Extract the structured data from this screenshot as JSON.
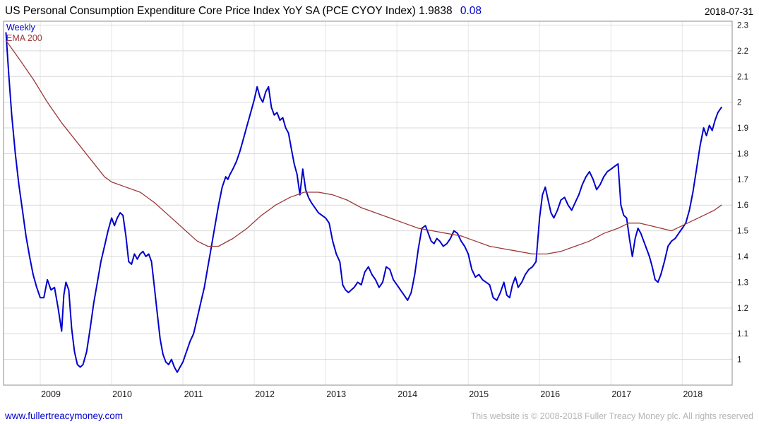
{
  "header": {
    "title": "US Personal Consumption Expenditure Core Price Index YoY SA (PCE CYOY Index) 1.9838",
    "change": "0.08",
    "date": "2018-07-31"
  },
  "legend": {
    "weekly": "Weekly",
    "ema": "EMA 200"
  },
  "footer": {
    "site": "www.fullertreacymoney.com",
    "copyright": "This website is © 2008-2018 Fuller Treacy Money plc. All rights reserved"
  },
  "chart_data": {
    "type": "line",
    "title": "US Personal Consumption Expenditure Core Price Index YoY SA (PCE CYOY Index)",
    "last_value": 1.9838,
    "change": 0.08,
    "frequency": "Weekly",
    "legend_position": "top-left",
    "grid": true,
    "x_axis": {
      "ticks": [
        "2009",
        "2010",
        "2011",
        "2012",
        "2013",
        "2014",
        "2015",
        "2016",
        "2017",
        "2018"
      ],
      "range": [
        2008.485,
        2018.7
      ]
    },
    "y_axis": {
      "ticks": [
        "1",
        "1.1",
        "1.2",
        "1.3",
        "1.4",
        "1.5",
        "1.6",
        "1.7",
        "1.8",
        "1.9",
        "2",
        "2.1",
        "2.2",
        "2.3"
      ],
      "range": [
        0.9,
        2.315
      ],
      "side": "right"
    },
    "style": {
      "hgrid": "#d9d9d9",
      "vgrid": "#e6e6e6",
      "border": "#8c8c8c",
      "axis_text": "#1a1a1a"
    },
    "series": [
      {
        "name": "Weekly",
        "color": "#0000cd",
        "width": 2,
        "points": [
          [
            2008.52,
            2.27
          ],
          [
            2008.56,
            2.1
          ],
          [
            2008.6,
            1.95
          ],
          [
            2008.65,
            1.8
          ],
          [
            2008.7,
            1.68
          ],
          [
            2008.75,
            1.58
          ],
          [
            2008.8,
            1.48
          ],
          [
            2008.85,
            1.4
          ],
          [
            2008.9,
            1.33
          ],
          [
            2008.95,
            1.28
          ],
          [
            2009.0,
            1.24
          ],
          [
            2009.05,
            1.24
          ],
          [
            2009.1,
            1.31
          ],
          [
            2009.15,
            1.27
          ],
          [
            2009.2,
            1.28
          ],
          [
            2009.25,
            1.2
          ],
          [
            2009.3,
            1.11
          ],
          [
            2009.33,
            1.25
          ],
          [
            2009.36,
            1.3
          ],
          [
            2009.4,
            1.27
          ],
          [
            2009.44,
            1.12
          ],
          [
            2009.48,
            1.03
          ],
          [
            2009.52,
            0.98
          ],
          [
            2009.56,
            0.97
          ],
          [
            2009.6,
            0.98
          ],
          [
            2009.65,
            1.03
          ],
          [
            2009.7,
            1.12
          ],
          [
            2009.75,
            1.22
          ],
          [
            2009.8,
            1.3
          ],
          [
            2009.85,
            1.38
          ],
          [
            2009.9,
            1.44
          ],
          [
            2009.95,
            1.5
          ],
          [
            2010.0,
            1.55
          ],
          [
            2010.04,
            1.52
          ],
          [
            2010.08,
            1.55
          ],
          [
            2010.12,
            1.57
          ],
          [
            2010.16,
            1.56
          ],
          [
            2010.2,
            1.48
          ],
          [
            2010.24,
            1.38
          ],
          [
            2010.28,
            1.37
          ],
          [
            2010.32,
            1.41
          ],
          [
            2010.36,
            1.39
          ],
          [
            2010.4,
            1.41
          ],
          [
            2010.44,
            1.42
          ],
          [
            2010.48,
            1.4
          ],
          [
            2010.52,
            1.41
          ],
          [
            2010.56,
            1.38
          ],
          [
            2010.6,
            1.28
          ],
          [
            2010.64,
            1.18
          ],
          [
            2010.68,
            1.08
          ],
          [
            2010.72,
            1.02
          ],
          [
            2010.76,
            0.99
          ],
          [
            2010.8,
            0.98
          ],
          [
            2010.84,
            1.0
          ],
          [
            2010.88,
            0.97
          ],
          [
            2010.92,
            0.95
          ],
          [
            2010.96,
            0.97
          ],
          [
            2011.0,
            0.99
          ],
          [
            2011.05,
            1.03
          ],
          [
            2011.1,
            1.07
          ],
          [
            2011.15,
            1.1
          ],
          [
            2011.2,
            1.16
          ],
          [
            2011.25,
            1.22
          ],
          [
            2011.3,
            1.28
          ],
          [
            2011.35,
            1.36
          ],
          [
            2011.4,
            1.44
          ],
          [
            2011.45,
            1.52
          ],
          [
            2011.5,
            1.6
          ],
          [
            2011.55,
            1.67
          ],
          [
            2011.6,
            1.71
          ],
          [
            2011.63,
            1.7
          ],
          [
            2011.66,
            1.72
          ],
          [
            2011.7,
            1.74
          ],
          [
            2011.75,
            1.77
          ],
          [
            2011.8,
            1.81
          ],
          [
            2011.85,
            1.86
          ],
          [
            2011.9,
            1.91
          ],
          [
            2011.95,
            1.96
          ],
          [
            2012.0,
            2.01
          ],
          [
            2012.04,
            2.06
          ],
          [
            2012.08,
            2.02
          ],
          [
            2012.12,
            2.0
          ],
          [
            2012.16,
            2.04
          ],
          [
            2012.2,
            2.06
          ],
          [
            2012.24,
            1.98
          ],
          [
            2012.28,
            1.95
          ],
          [
            2012.32,
            1.96
          ],
          [
            2012.36,
            1.93
          ],
          [
            2012.4,
            1.94
          ],
          [
            2012.44,
            1.9
          ],
          [
            2012.48,
            1.88
          ],
          [
            2012.52,
            1.82
          ],
          [
            2012.56,
            1.76
          ],
          [
            2012.6,
            1.72
          ],
          [
            2012.64,
            1.64
          ],
          [
            2012.68,
            1.74
          ],
          [
            2012.72,
            1.66
          ],
          [
            2012.76,
            1.63
          ],
          [
            2012.8,
            1.61
          ],
          [
            2012.85,
            1.59
          ],
          [
            2012.9,
            1.57
          ],
          [
            2012.95,
            1.56
          ],
          [
            2013.0,
            1.55
          ],
          [
            2013.05,
            1.53
          ],
          [
            2013.1,
            1.46
          ],
          [
            2013.15,
            1.41
          ],
          [
            2013.2,
            1.38
          ],
          [
            2013.24,
            1.29
          ],
          [
            2013.28,
            1.27
          ],
          [
            2013.32,
            1.26
          ],
          [
            2013.36,
            1.27
          ],
          [
            2013.4,
            1.28
          ],
          [
            2013.45,
            1.3
          ],
          [
            2013.5,
            1.29
          ],
          [
            2013.55,
            1.34
          ],
          [
            2013.6,
            1.36
          ],
          [
            2013.65,
            1.33
          ],
          [
            2013.7,
            1.31
          ],
          [
            2013.75,
            1.28
          ],
          [
            2013.8,
            1.3
          ],
          [
            2013.85,
            1.36
          ],
          [
            2013.9,
            1.35
          ],
          [
            2013.95,
            1.31
          ],
          [
            2014.0,
            1.29
          ],
          [
            2014.05,
            1.27
          ],
          [
            2014.1,
            1.25
          ],
          [
            2014.15,
            1.23
          ],
          [
            2014.2,
            1.26
          ],
          [
            2014.25,
            1.33
          ],
          [
            2014.3,
            1.43
          ],
          [
            2014.35,
            1.51
          ],
          [
            2014.4,
            1.52
          ],
          [
            2014.44,
            1.49
          ],
          [
            2014.48,
            1.46
          ],
          [
            2014.52,
            1.45
          ],
          [
            2014.56,
            1.47
          ],
          [
            2014.6,
            1.46
          ],
          [
            2014.65,
            1.44
          ],
          [
            2014.7,
            1.45
          ],
          [
            2014.75,
            1.47
          ],
          [
            2014.8,
            1.5
          ],
          [
            2014.85,
            1.49
          ],
          [
            2014.9,
            1.46
          ],
          [
            2014.95,
            1.44
          ],
          [
            2015.0,
            1.41
          ],
          [
            2015.05,
            1.35
          ],
          [
            2015.1,
            1.32
          ],
          [
            2015.15,
            1.33
          ],
          [
            2015.2,
            1.31
          ],
          [
            2015.25,
            1.3
          ],
          [
            2015.3,
            1.29
          ],
          [
            2015.35,
            1.24
          ],
          [
            2015.4,
            1.23
          ],
          [
            2015.45,
            1.26
          ],
          [
            2015.5,
            1.3
          ],
          [
            2015.54,
            1.25
          ],
          [
            2015.58,
            1.24
          ],
          [
            2015.62,
            1.29
          ],
          [
            2015.66,
            1.32
          ],
          [
            2015.7,
            1.28
          ],
          [
            2015.75,
            1.3
          ],
          [
            2015.8,
            1.33
          ],
          [
            2015.85,
            1.35
          ],
          [
            2015.9,
            1.36
          ],
          [
            2015.95,
            1.38
          ],
          [
            2016.0,
            1.55
          ],
          [
            2016.04,
            1.64
          ],
          [
            2016.08,
            1.67
          ],
          [
            2016.12,
            1.62
          ],
          [
            2016.16,
            1.57
          ],
          [
            2016.2,
            1.55
          ],
          [
            2016.25,
            1.58
          ],
          [
            2016.3,
            1.62
          ],
          [
            2016.35,
            1.63
          ],
          [
            2016.4,
            1.6
          ],
          [
            2016.45,
            1.58
          ],
          [
            2016.5,
            1.61
          ],
          [
            2016.55,
            1.64
          ],
          [
            2016.6,
            1.68
          ],
          [
            2016.65,
            1.71
          ],
          [
            2016.7,
            1.73
          ],
          [
            2016.75,
            1.7
          ],
          [
            2016.8,
            1.66
          ],
          [
            2016.85,
            1.68
          ],
          [
            2016.9,
            1.71
          ],
          [
            2016.95,
            1.73
          ],
          [
            2017.0,
            1.74
          ],
          [
            2017.05,
            1.75
          ],
          [
            2017.1,
            1.76
          ],
          [
            2017.14,
            1.6
          ],
          [
            2017.18,
            1.56
          ],
          [
            2017.22,
            1.55
          ],
          [
            2017.26,
            1.47
          ],
          [
            2017.3,
            1.4
          ],
          [
            2017.34,
            1.47
          ],
          [
            2017.38,
            1.51
          ],
          [
            2017.42,
            1.49
          ],
          [
            2017.46,
            1.46
          ],
          [
            2017.5,
            1.43
          ],
          [
            2017.54,
            1.4
          ],
          [
            2017.58,
            1.36
          ],
          [
            2017.62,
            1.31
          ],
          [
            2017.66,
            1.3
          ],
          [
            2017.7,
            1.33
          ],
          [
            2017.75,
            1.38
          ],
          [
            2017.8,
            1.44
          ],
          [
            2017.85,
            1.46
          ],
          [
            2017.9,
            1.47
          ],
          [
            2017.95,
            1.49
          ],
          [
            2018.0,
            1.51
          ],
          [
            2018.05,
            1.53
          ],
          [
            2018.1,
            1.58
          ],
          [
            2018.15,
            1.65
          ],
          [
            2018.2,
            1.74
          ],
          [
            2018.25,
            1.83
          ],
          [
            2018.3,
            1.9
          ],
          [
            2018.34,
            1.87
          ],
          [
            2018.38,
            1.91
          ],
          [
            2018.42,
            1.89
          ],
          [
            2018.46,
            1.93
          ],
          [
            2018.5,
            1.96
          ],
          [
            2018.55,
            1.98
          ]
        ]
      },
      {
        "name": "EMA 200",
        "color": "#9c3838",
        "width": 1.3,
        "points": [
          [
            2008.52,
            2.24
          ],
          [
            2008.7,
            2.17
          ],
          [
            2008.9,
            2.09
          ],
          [
            2009.1,
            2.0
          ],
          [
            2009.3,
            1.92
          ],
          [
            2009.5,
            1.85
          ],
          [
            2009.7,
            1.78
          ],
          [
            2009.9,
            1.71
          ],
          [
            2010.0,
            1.69
          ],
          [
            2010.2,
            1.67
          ],
          [
            2010.4,
            1.65
          ],
          [
            2010.6,
            1.61
          ],
          [
            2010.8,
            1.56
          ],
          [
            2011.0,
            1.51
          ],
          [
            2011.2,
            1.46
          ],
          [
            2011.35,
            1.44
          ],
          [
            2011.5,
            1.44
          ],
          [
            2011.7,
            1.47
          ],
          [
            2011.9,
            1.51
          ],
          [
            2012.1,
            1.56
          ],
          [
            2012.3,
            1.6
          ],
          [
            2012.5,
            1.63
          ],
          [
            2012.7,
            1.65
          ],
          [
            2012.9,
            1.65
          ],
          [
            2013.1,
            1.64
          ],
          [
            2013.3,
            1.62
          ],
          [
            2013.5,
            1.59
          ],
          [
            2013.7,
            1.57
          ],
          [
            2013.9,
            1.55
          ],
          [
            2014.1,
            1.53
          ],
          [
            2014.3,
            1.51
          ],
          [
            2014.5,
            1.5
          ],
          [
            2014.7,
            1.49
          ],
          [
            2014.9,
            1.48
          ],
          [
            2015.1,
            1.46
          ],
          [
            2015.3,
            1.44
          ],
          [
            2015.5,
            1.43
          ],
          [
            2015.7,
            1.42
          ],
          [
            2015.9,
            1.41
          ],
          [
            2016.1,
            1.41
          ],
          [
            2016.3,
            1.42
          ],
          [
            2016.5,
            1.44
          ],
          [
            2016.7,
            1.46
          ],
          [
            2016.9,
            1.49
          ],
          [
            2017.1,
            1.51
          ],
          [
            2017.25,
            1.53
          ],
          [
            2017.4,
            1.53
          ],
          [
            2017.55,
            1.52
          ],
          [
            2017.7,
            1.51
          ],
          [
            2017.85,
            1.5
          ],
          [
            2018.0,
            1.52
          ],
          [
            2018.15,
            1.54
          ],
          [
            2018.3,
            1.56
          ],
          [
            2018.45,
            1.58
          ],
          [
            2018.55,
            1.6
          ]
        ]
      }
    ]
  }
}
